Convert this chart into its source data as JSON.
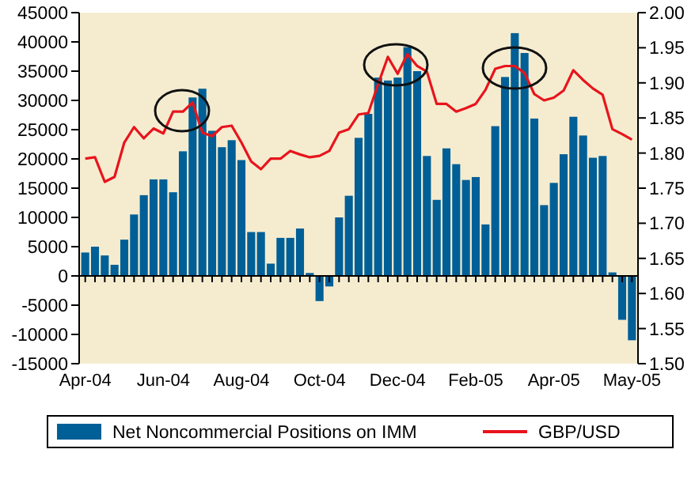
{
  "chart_data": {
    "type": "bar",
    "categories": [
      "Apr-04",
      null,
      null,
      null,
      null,
      null,
      null,
      null,
      "Jun-04",
      null,
      null,
      null,
      null,
      null,
      null,
      null,
      "Aug-04",
      null,
      null,
      null,
      null,
      null,
      null,
      null,
      "Oct-04",
      null,
      null,
      null,
      null,
      null,
      null,
      null,
      "Dec-04",
      null,
      null,
      null,
      null,
      null,
      null,
      null,
      "Feb-05",
      null,
      null,
      null,
      null,
      null,
      null,
      null,
      "Apr-05",
      null,
      null,
      null,
      null,
      null,
      null,
      null,
      "May-05"
    ],
    "series": [
      {
        "name": "Net Noncommercial Positions on IMM",
        "color": "#005f96",
        "values": [
          4000,
          5000,
          3500,
          1900,
          6200,
          10500,
          13800,
          16500,
          16500,
          14300,
          21300,
          30500,
          32000,
          24800,
          22000,
          23200,
          19800,
          7500,
          7500,
          2100,
          6500,
          6500,
          8100,
          500,
          -4300,
          -1800,
          10000,
          13700,
          23600,
          27700,
          33900,
          33400,
          33900,
          39100,
          35000,
          20500,
          13000,
          21800,
          19100,
          16400,
          16900,
          8800,
          25600,
          34000,
          41500,
          38100,
          26900,
          12100,
          15900,
          20800,
          27200,
          24000,
          20200,
          20500,
          600,
          -7500,
          -11000
        ]
      },
      {
        "name": "GBP/USD",
        "type": "line",
        "axis": "y2",
        "color": "#e8141c",
        "values": [
          1.792,
          1.794,
          1.759,
          1.766,
          1.815,
          1.837,
          1.821,
          1.835,
          1.828,
          1.859,
          1.859,
          1.872,
          1.829,
          1.824,
          1.837,
          1.839,
          1.815,
          1.788,
          1.777,
          1.792,
          1.792,
          1.803,
          1.798,
          1.794,
          1.796,
          1.803,
          1.829,
          1.834,
          1.855,
          1.857,
          1.898,
          1.937,
          1.913,
          1.941,
          1.924,
          1.916,
          1.87,
          1.87,
          1.859,
          1.864,
          1.87,
          1.89,
          1.92,
          1.924,
          1.924,
          1.914,
          1.884,
          1.875,
          1.879,
          1.889,
          1.918,
          1.904,
          1.892,
          1.883,
          1.834,
          1.827,
          1.819
        ]
      }
    ],
    "ylim": [
      -15000,
      45000
    ],
    "yticks": [
      -15000,
      -10000,
      -5000,
      0,
      5000,
      10000,
      15000,
      20000,
      25000,
      30000,
      35000,
      40000,
      45000
    ],
    "y2lim": [
      1.5,
      2.0
    ],
    "y2ticks": [
      {
        "value": 1.5,
        "label": "1.50"
      },
      {
        "value": 1.55,
        "label": "1.55"
      },
      {
        "value": 1.6,
        "label": "1.60"
      },
      {
        "value": 1.65,
        "label": "1.65"
      },
      {
        "value": 1.7,
        "label": "1.70"
      },
      {
        "value": 1.75,
        "label": "1.75"
      },
      {
        "value": 1.8,
        "label": "1.80"
      },
      {
        "value": 1.85,
        "label": "1.85"
      },
      {
        "value": 1.9,
        "label": "1.90"
      },
      {
        "value": 1.95,
        "label": "1.95"
      },
      {
        "value": 2.0,
        "label": "2.00"
      }
    ],
    "legend": "bottom"
  }
}
